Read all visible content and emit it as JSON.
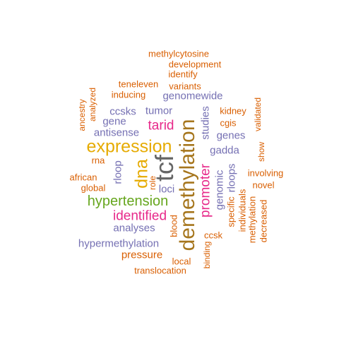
{
  "palette": {
    "orange": "#D95F02",
    "purple": "#7570B3",
    "magenta": "#E7298A",
    "green": "#66A61E",
    "gold": "#E6AB02",
    "olive": "#A6761D",
    "gray": "#666666"
  },
  "words": [
    {
      "text": "methylcytosine",
      "color": "orange",
      "weight": 2
    },
    {
      "text": "development",
      "color": "orange",
      "weight": 2
    },
    {
      "text": "identify",
      "color": "orange",
      "weight": 2
    },
    {
      "text": "teneleven",
      "color": "orange",
      "weight": 2
    },
    {
      "text": "variants",
      "color": "orange",
      "weight": 2
    },
    {
      "text": "inducing",
      "color": "orange",
      "weight": 2
    },
    {
      "text": "genomewide",
      "color": "purple",
      "weight": 3
    },
    {
      "text": "ancestry",
      "color": "orange",
      "weight": 2
    },
    {
      "text": "analyzed",
      "color": "orange",
      "weight": 2
    },
    {
      "text": "validated",
      "color": "orange",
      "weight": 2
    },
    {
      "text": "ccsks",
      "color": "purple",
      "weight": 3
    },
    {
      "text": "tumor",
      "color": "purple",
      "weight": 3
    },
    {
      "text": "kidney",
      "color": "orange",
      "weight": 2
    },
    {
      "text": "gene",
      "color": "purple",
      "weight": 3
    },
    {
      "text": "tarid",
      "color": "magenta",
      "weight": 4
    },
    {
      "text": "cgis",
      "color": "orange",
      "weight": 2
    },
    {
      "text": "studies",
      "color": "purple",
      "weight": 3
    },
    {
      "text": "genes",
      "color": "purple",
      "weight": 3
    },
    {
      "text": "antisense",
      "color": "purple",
      "weight": 3
    },
    {
      "text": "expression",
      "color": "gold",
      "weight": 5
    },
    {
      "text": "gadda",
      "color": "purple",
      "weight": 3
    },
    {
      "text": "show",
      "color": "orange",
      "weight": 2
    },
    {
      "text": "rna",
      "color": "orange",
      "weight": 2
    },
    {
      "text": "demethylation",
      "color": "olive",
      "weight": 6
    },
    {
      "text": "tcf",
      "color": "gray",
      "weight": 7
    },
    {
      "text": "dna",
      "color": "gold",
      "weight": 5
    },
    {
      "text": "rloop",
      "color": "purple",
      "weight": 3
    },
    {
      "text": "african",
      "color": "orange",
      "weight": 2
    },
    {
      "text": "role",
      "color": "orange",
      "weight": 2
    },
    {
      "text": "promoter",
      "color": "magenta",
      "weight": 4
    },
    {
      "text": "involving",
      "color": "orange",
      "weight": 2
    },
    {
      "text": "global",
      "color": "orange",
      "weight": 2
    },
    {
      "text": "loci",
      "color": "purple",
      "weight": 3
    },
    {
      "text": "rloops",
      "color": "purple",
      "weight": 3
    },
    {
      "text": "novel",
      "color": "orange",
      "weight": 2
    },
    {
      "text": "genomic",
      "color": "purple",
      "weight": 3
    },
    {
      "text": "hypertension",
      "color": "green",
      "weight": 5
    },
    {
      "text": "specific",
      "color": "orange",
      "weight": 2
    },
    {
      "text": "individuals",
      "color": "orange",
      "weight": 2
    },
    {
      "text": "decreased",
      "color": "orange",
      "weight": 2
    },
    {
      "text": "methylation",
      "color": "orange",
      "weight": 2
    },
    {
      "text": "identified",
      "color": "magenta",
      "weight": 4
    },
    {
      "text": "blood",
      "color": "orange",
      "weight": 2
    },
    {
      "text": "analyses",
      "color": "purple",
      "weight": 3
    },
    {
      "text": "ccsk",
      "color": "orange",
      "weight": 2
    },
    {
      "text": "hypermethylation",
      "color": "purple",
      "weight": 3
    },
    {
      "text": "binding",
      "color": "orange",
      "weight": 2
    },
    {
      "text": "pressure",
      "color": "orange",
      "weight": 2
    },
    {
      "text": "local",
      "color": "orange",
      "weight": 2
    },
    {
      "text": "translocation",
      "color": "orange",
      "weight": 2
    }
  ]
}
